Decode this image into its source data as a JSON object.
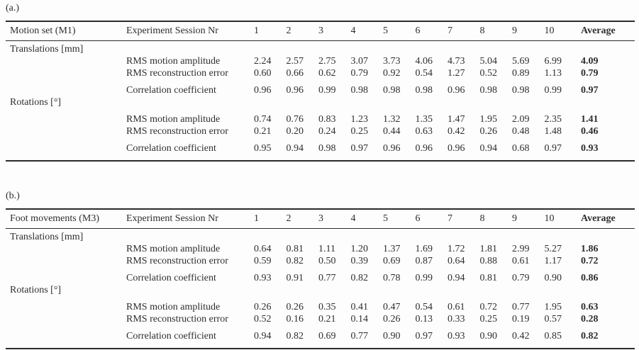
{
  "page": {
    "background": "#fdfdfd",
    "text_color": "#2e2e2e",
    "rule_color": "#2b2b2b"
  },
  "tables": [
    {
      "label": "(a.)",
      "row_header": "Motion set (M1)",
      "session_header": "Experiment Session Nr",
      "sessions": [
        "1",
        "2",
        "3",
        "4",
        "5",
        "6",
        "7",
        "8",
        "9",
        "10"
      ],
      "average_header": "Average",
      "groups": [
        {
          "name": "Translations [mm]",
          "rows": [
            {
              "metric": "RMS motion amplitude",
              "values": [
                "2.24",
                "2.57",
                "2.75",
                "3.07",
                "3.73",
                "4.06",
                "4.73",
                "5.04",
                "5.69",
                "6.99"
              ],
              "average": "4.09",
              "spaced": false
            },
            {
              "metric": "RMS reconstruction error",
              "values": [
                "0.60",
                "0.66",
                "0.62",
                "0.79",
                "0.92",
                "0.54",
                "1.27",
                "0.52",
                "0.89",
                "1.13"
              ],
              "average": "0.79",
              "spaced": false
            },
            {
              "metric": "Correlation coefficient",
              "values": [
                "0.96",
                "0.96",
                "0.99",
                "0.98",
                "0.98",
                "0.98",
                "0.96",
                "0.98",
                "0.98",
                "0.99"
              ],
              "average": "0.97",
              "spaced": true
            }
          ]
        },
        {
          "name": "Rotations [°]",
          "rows": [
            {
              "metric": "RMS motion amplitude",
              "values": [
                "0.74",
                "0.76",
                "0.83",
                "1.23",
                "1.32",
                "1.35",
                "1.47",
                "1.95",
                "2.09",
                "2.35"
              ],
              "average": "1.41",
              "spaced": true
            },
            {
              "metric": "RMS reconstruction error",
              "values": [
                "0.21",
                "0.20",
                "0.24",
                "0.25",
                "0.44",
                "0.63",
                "0.42",
                "0.26",
                "0.48",
                "1.48"
              ],
              "average": "0.46",
              "spaced": false
            },
            {
              "metric": "Correlation coefficient",
              "values": [
                "0.95",
                "0.94",
                "0.98",
                "0.97",
                "0.96",
                "0.96",
                "0.96",
                "0.94",
                "0.68",
                "0.97"
              ],
              "average": "0.93",
              "spaced": true
            }
          ]
        }
      ]
    },
    {
      "label": "(b.)",
      "row_header": "Foot movements (M3)",
      "session_header": "Experiment Session Nr",
      "sessions": [
        "1",
        "2",
        "3",
        "4",
        "5",
        "6",
        "7",
        "8",
        "9",
        "10"
      ],
      "average_header": "Average",
      "groups": [
        {
          "name": "Translations [mm]",
          "rows": [
            {
              "metric": "RMS motion amplitude",
              "values": [
                "0.64",
                "0.81",
                "1.11",
                "1.20",
                "1.37",
                "1.69",
                "1.72",
                "1.81",
                "2.99",
                "5.27"
              ],
              "average": "1.86",
              "spaced": false
            },
            {
              "metric": "RMS reconstruction error",
              "values": [
                "0.59",
                "0.82",
                "0.50",
                "0.39",
                "0.69",
                "0.87",
                "0.64",
                "0.88",
                "0.61",
                "1.17"
              ],
              "average": "0.72",
              "spaced": false
            },
            {
              "metric": "Correlation coefficient",
              "values": [
                "0.93",
                "0.91",
                "0.77",
                "0.82",
                "0.78",
                "0.99",
                "0.94",
                "0.81",
                "0.79",
                "0.90"
              ],
              "average": "0.86",
              "spaced": true
            }
          ]
        },
        {
          "name": "Rotations [°]",
          "rows": [
            {
              "metric": "RMS motion amplitude",
              "values": [
                "0.26",
                "0.26",
                "0.35",
                "0.41",
                "0.47",
                "0.54",
                "0.61",
                "0.72",
                "0.77",
                "1.95"
              ],
              "average": "0.63",
              "spaced": true
            },
            {
              "metric": "RMS reconstruction error",
              "values": [
                "0.52",
                "0.16",
                "0.21",
                "0.14",
                "0.26",
                "0.13",
                "0.33",
                "0.25",
                "0.19",
                "0.57"
              ],
              "average": "0.28",
              "spaced": false
            },
            {
              "metric": "Correlation coefficient",
              "values": [
                "0.94",
                "0.82",
                "0.69",
                "0.77",
                "0.90",
                "0.97",
                "0.93",
                "0.90",
                "0.42",
                "0.85"
              ],
              "average": "0.82",
              "spaced": true
            }
          ]
        }
      ]
    }
  ]
}
